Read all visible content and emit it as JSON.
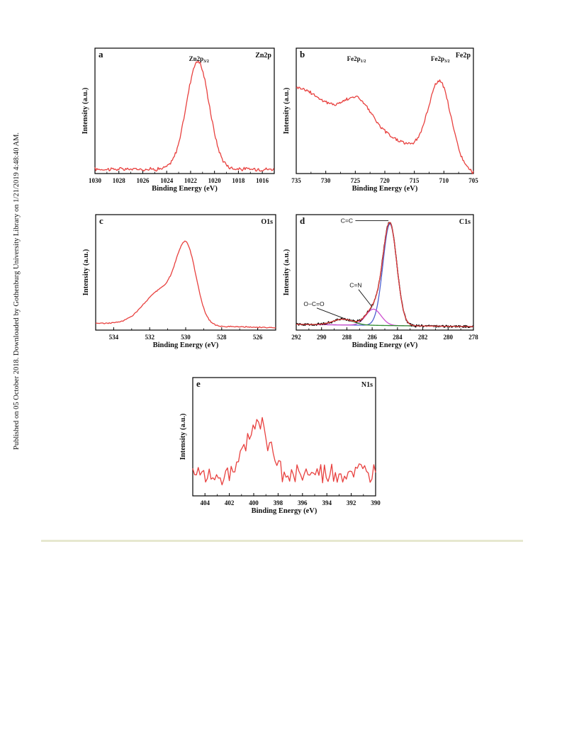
{
  "side_note": "Published on 05 October 2018. Downloaded by Gothenburg University Library on 1/21/2019 4:48:40 AM.",
  "colors": {
    "spectrum": "#e8413f",
    "fit_black": "#000000",
    "fit_blue": "#4d5fcf",
    "fit_magenta": "#cc4fcf",
    "fit_green": "#2e8a2e",
    "axis": "#000000"
  },
  "chart_data": [
    {
      "id": "a",
      "type": "line",
      "panel_label": "a",
      "title": "Zn2p",
      "xlabel": "Binding Energy (eV)",
      "ylabel": "Intensity (a.u.)",
      "xlim": [
        1030,
        1015
      ],
      "ylim": [
        0,
        1
      ],
      "reversed_x": true,
      "xticks": [
        1030,
        1028,
        1026,
        1024,
        1022,
        1020,
        1018,
        1016
      ],
      "annotations": [
        {
          "base": "Zn2p",
          "sub": "3/2",
          "x": 1021.3
        }
      ],
      "series": [
        {
          "peaks": [
            [
              1021.4,
              0.86,
              0.95
            ]
          ],
          "baseline": [
            0.035,
            0.035
          ],
          "noise": 0.012,
          "step": 0.08
        }
      ]
    },
    {
      "id": "b",
      "type": "line",
      "panel_label": "b",
      "title": "Fe2p",
      "xlabel": "Binding Energy (eV)",
      "ylabel": "Intensity (a.u.)",
      "xlim": [
        735,
        705
      ],
      "ylim": [
        0,
        1
      ],
      "reversed_x": true,
      "xticks": [
        735,
        730,
        725,
        720,
        715,
        710,
        705
      ],
      "annotations": [
        {
          "base": "Fe2p",
          "sub": "1/2",
          "x": 724.8
        },
        {
          "base": "Fe2p",
          "sub": "3/2",
          "x": 710.6
        }
      ],
      "series": [
        {
          "peaks": [
            [
              724.6,
              0.2,
              2.3
            ],
            [
              710.7,
              0.62,
              1.9
            ],
            [
              733.5,
              0.08,
              3.0
            ]
          ],
          "baseline": [
            0.62,
            0.0
          ],
          "noise": 0.012,
          "step": 0.15
        }
      ]
    },
    {
      "id": "c",
      "type": "line",
      "panel_label": "c",
      "title": "O1s",
      "xlabel": "Binding Energy (eV)",
      "ylabel": "Intensity (a.u.)",
      "xlim": [
        535,
        525
      ],
      "ylim": [
        0,
        1
      ],
      "reversed_x": true,
      "xticks": [
        534,
        532,
        530,
        528,
        526
      ],
      "annotations": [],
      "series": [
        {
          "peaks": [
            [
              529.95,
              0.6,
              0.55
            ],
            [
              531.3,
              0.3,
              1.0
            ]
          ],
          "baseline": [
            0.06,
            0.02
          ],
          "noise": 0.004,
          "step": 0.05
        }
      ]
    },
    {
      "id": "d",
      "type": "line",
      "panel_label": "d",
      "title": "C1s",
      "xlabel": "Binding Energy (eV)",
      "ylabel": "Intensity (a.u.)",
      "xlim": [
        292,
        278
      ],
      "ylim": [
        0,
        1
      ],
      "reversed_x": true,
      "xticks": [
        292,
        290,
        288,
        286,
        284,
        282,
        280,
        278
      ],
      "annotations": [
        {
          "text": "C=C",
          "x": 284.6,
          "y": 0.93,
          "tx": 288.0,
          "ty": 0.93
        },
        {
          "text": "C=N",
          "x": 286.0,
          "y": 0.2,
          "tx": 287.3,
          "ty": 0.37
        },
        {
          "text": "O−C=O",
          "x": 288.2,
          "y": 0.1,
          "tx": 290.6,
          "ty": 0.21
        }
      ],
      "series": [
        {
          "name": "",
          "color": "#4d5fcf",
          "peaks": [
            [
              284.6,
              0.88,
              0.55
            ]
          ],
          "baseline": [
            0.05,
            0.03
          ],
          "noise": 0,
          "step": 0.05
        },
        {
          "name": "",
          "color": "#cc4fcf",
          "peaks": [
            [
              285.9,
              0.14,
              0.6
            ]
          ],
          "baseline": [
            0.05,
            0.03
          ],
          "noise": 0,
          "step": 0.05
        },
        {
          "name": "",
          "color": "#2e8a2e",
          "peaks": [
            [
              288.3,
              0.05,
              0.8
            ]
          ],
          "baseline": [
            0.05,
            0.03
          ],
          "noise": 0,
          "step": 0.05
        },
        {
          "name": "",
          "color": "#000000",
          "peaks": [
            [
              284.6,
              0.88,
              0.55
            ],
            [
              285.9,
              0.14,
              0.6
            ],
            [
              288.3,
              0.05,
              0.8
            ]
          ],
          "baseline": [
            0.05,
            0.03
          ],
          "noise": 0.008,
          "step": 0.05
        },
        {
          "name": "",
          "color": "#e8413f",
          "peaks": [
            [
              284.6,
              0.88,
              0.55
            ],
            [
              285.9,
              0.14,
              0.6
            ],
            [
              288.3,
              0.05,
              0.8
            ]
          ],
          "baseline": [
            0.05,
            0.03
          ],
          "noise": 0,
          "step": 0.05
        }
      ]
    },
    {
      "id": "e",
      "type": "line",
      "panel_label": "e",
      "title": "N1s",
      "xlabel": "Binding Energy (eV)",
      "ylabel": "Intensity (a.u.)",
      "xlim": [
        405,
        390
      ],
      "ylim": [
        0,
        1
      ],
      "reversed_x": true,
      "xticks": [
        404,
        402,
        400,
        398,
        396,
        394,
        392,
        390
      ],
      "annotations": [],
      "series": [
        {
          "peaks": [
            [
              399.7,
              0.45,
              0.9
            ]
          ],
          "baseline": [
            0.18,
            0.18
          ],
          "noise": 0.07,
          "step": 0.15
        }
      ]
    }
  ]
}
